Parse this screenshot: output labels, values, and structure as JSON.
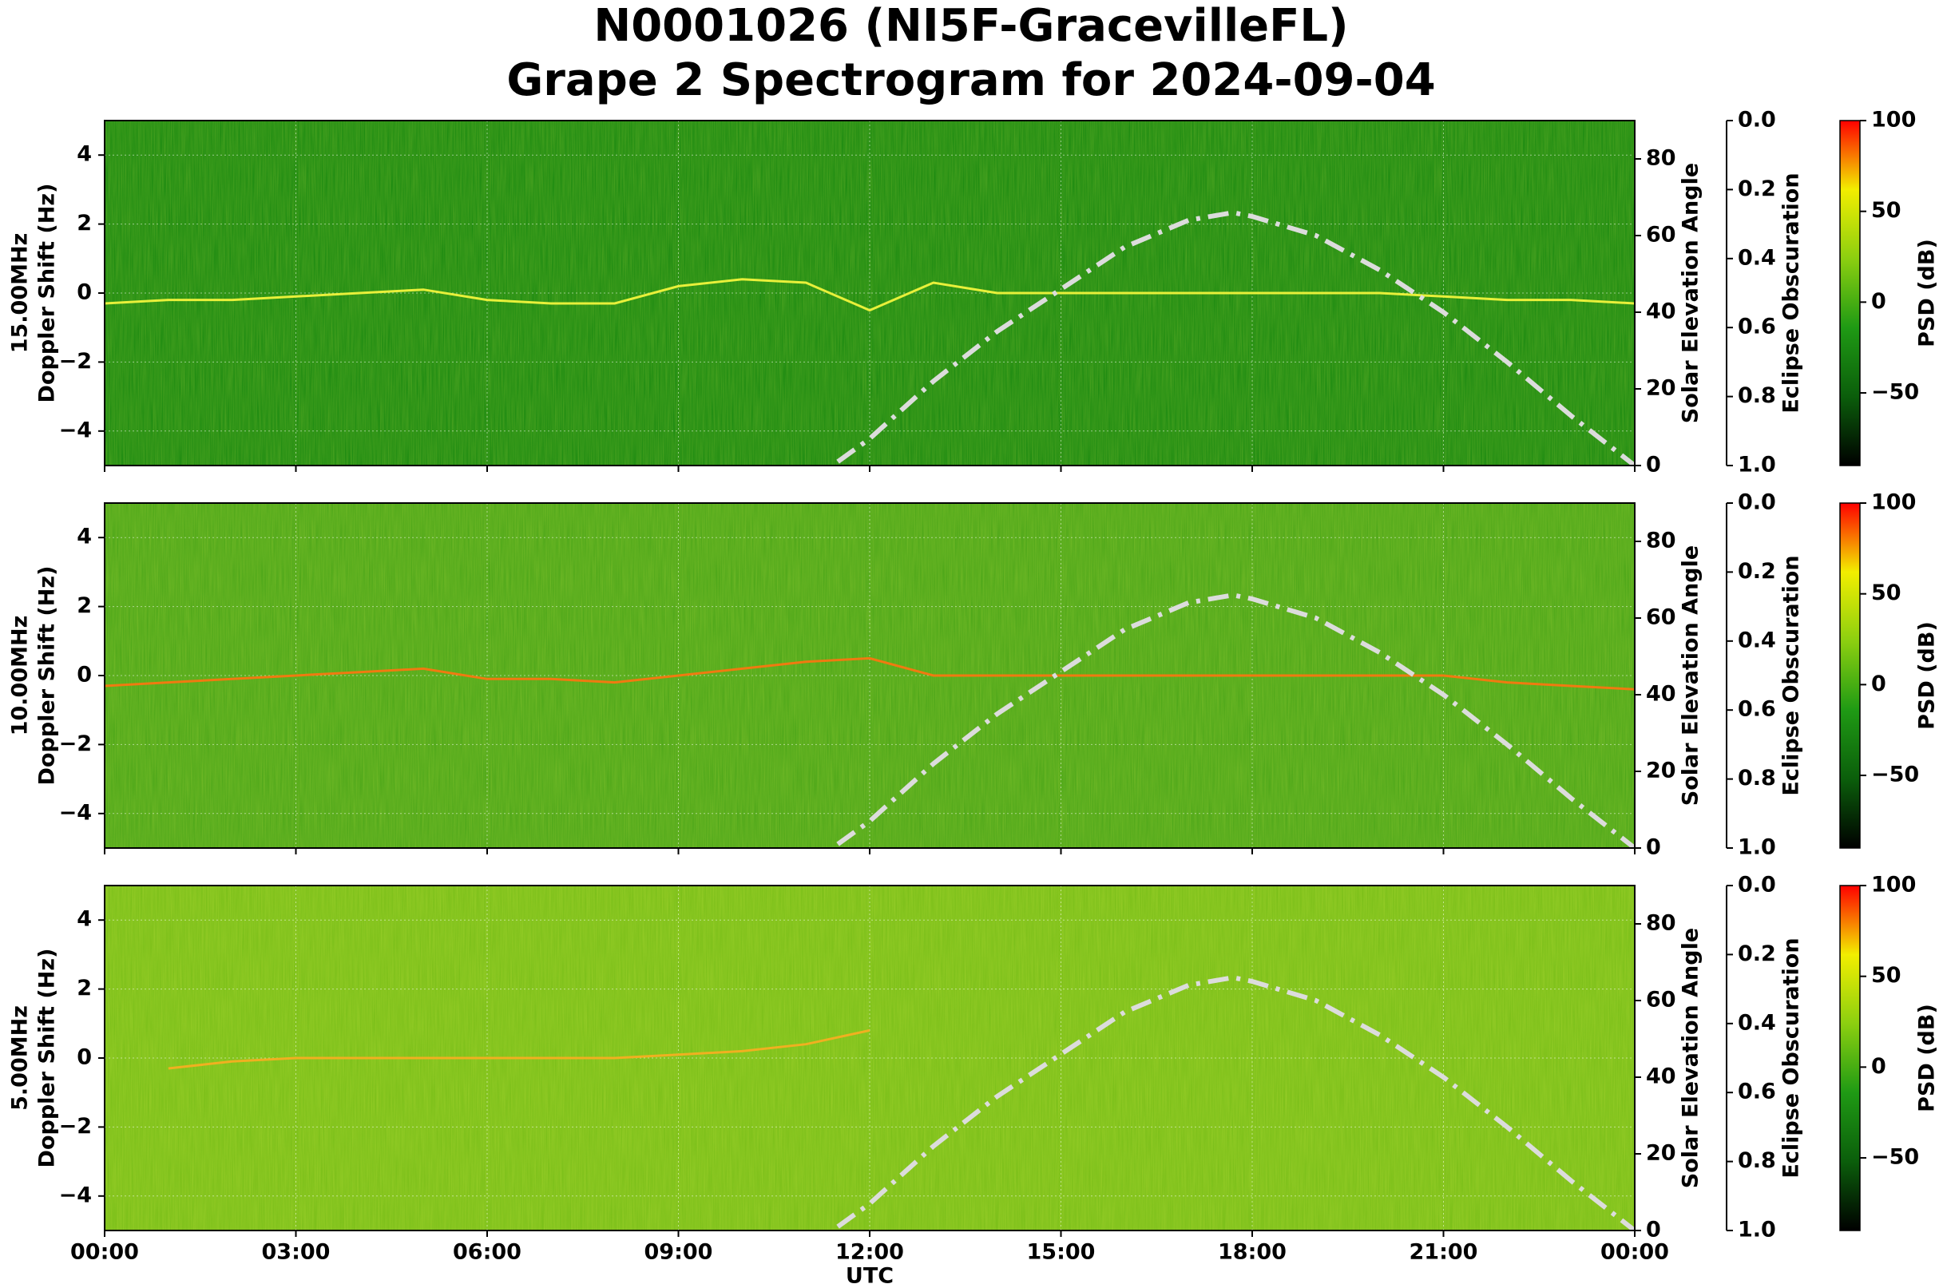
{
  "chart_data": [
    {
      "type": "spectrogram",
      "title": [
        "N0001026 (NI5F-GracevilleFL)",
        "Grape 2 Spectrogram for 2024-09-04"
      ],
      "ylabel": [
        "15.00MHz",
        "Doppler Shift (Hz)"
      ],
      "background_color": "#1f8c12",
      "xlim": [
        0,
        24
      ],
      "ylim": [
        -5,
        5
      ],
      "yticks": [
        {
          "value": -4,
          "label": "−4"
        },
        {
          "value": -2,
          "label": "−2"
        },
        0,
        2,
        4
      ],
      "grid": true,
      "y2label": "Solar Elevation Angle",
      "y2lim": [
        0,
        90
      ],
      "y2ticks": [
        0,
        20,
        40,
        60,
        80
      ],
      "y3label": "Eclipse Obscuration",
      "y3lim": [
        1,
        0
      ],
      "y3ticks": [
        {
          "value": 0,
          "label": "0.0"
        },
        {
          "value": 0.2,
          "label": "0.2"
        },
        {
          "value": 0.4,
          "label": "0.4"
        },
        {
          "value": 0.6,
          "label": "0.6"
        },
        {
          "value": 0.8,
          "label": "0.8"
        },
        {
          "value": 1,
          "label": "1.0"
        }
      ],
      "colorbar_label": "PSD (dB)",
      "clim": [
        -90,
        100
      ],
      "cticks": [
        100,
        50,
        0,
        {
          "value": -50,
          "label": "−50"
        }
      ],
      "cmap_colors": [
        "#000000",
        "#0b5e0b",
        "#1f9a14",
        "#8ccf10",
        "#f2ee00",
        "#ff0000"
      ],
      "series": [
        {
          "axis": "y",
          "color": "#e8f03a",
          "style": "solid",
          "x": [
            0,
            1,
            2,
            3,
            4,
            5,
            6,
            7,
            8,
            9,
            10,
            11,
            12,
            13,
            14,
            15,
            16,
            17,
            18,
            19,
            20,
            21,
            22,
            23,
            24
          ],
          "values": [
            -0.3,
            -0.2,
            -0.2,
            -0.1,
            0.0,
            0.1,
            -0.2,
            -0.3,
            -0.3,
            0.2,
            0.4,
            0.3,
            -0.5,
            0.3,
            0.0,
            0.0,
            0.0,
            0.0,
            0.0,
            0.0,
            0.0,
            -0.1,
            -0.2,
            -0.2,
            -0.3
          ]
        },
        {
          "axis": "y2",
          "color": "#dcdcdc",
          "style": "dashdot",
          "x": [
            11.5,
            12,
            13,
            14,
            15,
            16,
            17,
            17.7,
            18,
            19,
            20,
            21,
            22,
            23,
            24
          ],
          "values": [
            1,
            7,
            22,
            35,
            46,
            57,
            64,
            66,
            65,
            60,
            51,
            40,
            27,
            13,
            0
          ]
        }
      ]
    },
    {
      "type": "spectrogram",
      "ylabel": [
        "10.00MHz",
        "Doppler Shift (Hz)"
      ],
      "background_color": "#4fa81a",
      "xlim": [
        0,
        24
      ],
      "ylim": [
        -5,
        5
      ],
      "yticks": [
        {
          "value": -4,
          "label": "−4"
        },
        {
          "value": -2,
          "label": "−2"
        },
        0,
        2,
        4
      ],
      "grid": true,
      "y2label": "Solar Elevation Angle",
      "y2lim": [
        0,
        90
      ],
      "y2ticks": [
        0,
        20,
        40,
        60,
        80
      ],
      "y3label": "Eclipse Obscuration",
      "y3lim": [
        1,
        0
      ],
      "y3ticks": [
        {
          "value": 0,
          "label": "0.0"
        },
        {
          "value": 0.2,
          "label": "0.2"
        },
        {
          "value": 0.4,
          "label": "0.4"
        },
        {
          "value": 0.6,
          "label": "0.6"
        },
        {
          "value": 0.8,
          "label": "0.8"
        },
        {
          "value": 1,
          "label": "1.0"
        }
      ],
      "colorbar_label": "PSD (dB)",
      "clim": [
        -90,
        100
      ],
      "cticks": [
        100,
        50,
        0,
        {
          "value": -50,
          "label": "−50"
        }
      ],
      "cmap_colors": [
        "#000000",
        "#0b5e0b",
        "#1f9a14",
        "#8ccf10",
        "#f2ee00",
        "#ff0000"
      ],
      "series": [
        {
          "axis": "y",
          "color": "#f07a10",
          "style": "solid",
          "x": [
            0,
            1,
            2,
            3,
            4,
            5,
            6,
            7,
            8,
            9,
            10,
            11,
            12,
            13,
            14,
            15,
            16,
            17,
            18,
            19,
            20,
            21,
            22,
            23,
            24
          ],
          "values": [
            -0.3,
            -0.2,
            -0.1,
            0.0,
            0.1,
            0.2,
            -0.1,
            -0.1,
            -0.2,
            0.0,
            0.2,
            0.4,
            0.5,
            0.0,
            0.0,
            0.0,
            0.0,
            0.0,
            0.0,
            0.0,
            0.0,
            0.0,
            -0.2,
            -0.3,
            -0.4
          ]
        },
        {
          "axis": "y2",
          "color": "#dcdcdc",
          "style": "dashdot",
          "x": [
            11.5,
            12,
            13,
            14,
            15,
            16,
            17,
            17.7,
            18,
            19,
            20,
            21,
            22,
            23,
            24
          ],
          "values": [
            1,
            7,
            22,
            35,
            46,
            57,
            64,
            66,
            65,
            60,
            51,
            40,
            27,
            13,
            0
          ]
        }
      ]
    },
    {
      "type": "spectrogram",
      "ylabel": [
        "5.00MHz",
        "Doppler Shift (Hz)"
      ],
      "background_color": "#7cc01a",
      "xlim": [
        0,
        24
      ],
      "ylim": [
        -5,
        5
      ],
      "yticks": [
        {
          "value": -4,
          "label": "−4"
        },
        {
          "value": -2,
          "label": "−2"
        },
        0,
        2,
        4
      ],
      "grid": true,
      "xticks": [
        {
          "value": 0,
          "label": "00:00"
        },
        {
          "value": 3,
          "label": "03:00"
        },
        {
          "value": 6,
          "label": "06:00"
        },
        {
          "value": 9,
          "label": "09:00"
        },
        {
          "value": 12,
          "label": "12:00"
        },
        {
          "value": 15,
          "label": "15:00"
        },
        {
          "value": 18,
          "label": "18:00"
        },
        {
          "value": 21,
          "label": "21:00"
        },
        {
          "value": 24,
          "label": "00:00"
        }
      ],
      "xlabel": "UTC",
      "y2label": "Solar Elevation Angle",
      "y2lim": [
        0,
        90
      ],
      "y2ticks": [
        0,
        20,
        40,
        60,
        80
      ],
      "y3label": "Eclipse Obscuration",
      "y3lim": [
        1,
        0
      ],
      "y3ticks": [
        {
          "value": 0,
          "label": "0.0"
        },
        {
          "value": 0.2,
          "label": "0.2"
        },
        {
          "value": 0.4,
          "label": "0.4"
        },
        {
          "value": 0.6,
          "label": "0.6"
        },
        {
          "value": 0.8,
          "label": "0.8"
        },
        {
          "value": 1,
          "label": "1.0"
        }
      ],
      "colorbar_label": "PSD (dB)",
      "clim": [
        -90,
        100
      ],
      "cticks": [
        100,
        50,
        0,
        {
          "value": -50,
          "label": "−50"
        }
      ],
      "cmap_colors": [
        "#000000",
        "#0b5e0b",
        "#1f9a14",
        "#8ccf10",
        "#f2ee00",
        "#ff0000"
      ],
      "series": [
        {
          "axis": "y",
          "color": "#f0b020",
          "style": "solid",
          "x": [
            1,
            2,
            3,
            4,
            5,
            6,
            7,
            8,
            9,
            10,
            11,
            12,
            13
          ],
          "values": [
            -0.3,
            -0.1,
            0.0,
            0.0,
            0.0,
            0.0,
            0.0,
            0.0,
            0.1,
            0.2,
            0.4,
            0.8,
            null
          ]
        },
        {
          "axis": "y2",
          "color": "#dcdcdc",
          "style": "dashdot",
          "x": [
            11.5,
            12,
            13,
            14,
            15,
            16,
            17,
            17.7,
            18,
            19,
            20,
            21,
            22,
            23,
            24
          ],
          "values": [
            1,
            7,
            22,
            35,
            46,
            57,
            64,
            66,
            65,
            60,
            51,
            40,
            27,
            13,
            0
          ]
        }
      ]
    }
  ]
}
